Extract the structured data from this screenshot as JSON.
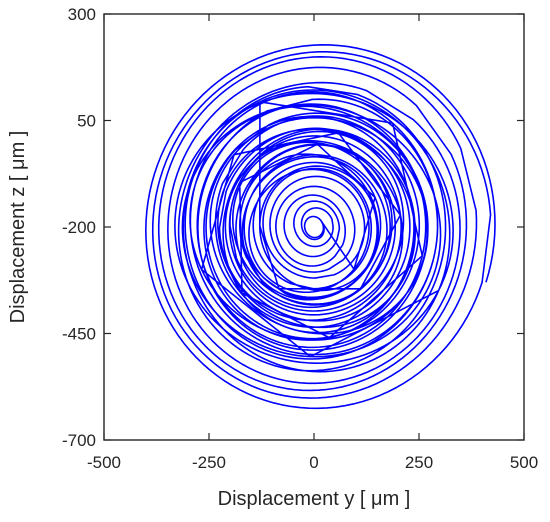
{
  "chart_data": {
    "type": "line",
    "title": "",
    "xlabel": "Displacement y   [ μm ]",
    "ylabel": "Displacement z   [ μm ]",
    "xlim": [
      -500,
      500
    ],
    "ylim": [
      -700,
      300
    ],
    "xticks": [
      -500,
      -250,
      0,
      250,
      500
    ],
    "yticks": [
      -700,
      -450,
      -200,
      50,
      300
    ],
    "grid": false,
    "legend": "none",
    "colors": {
      "line": "#0000ff",
      "axis": "#262626"
    },
    "series": [
      {
        "orbit_center": [
          0,
          -200
        ],
        "loops": [
          {
            "ry": 420,
            "rz": 435,
            "cy": 10,
            "cz": -200,
            "tilt_deg": -18
          },
          {
            "ry": 405,
            "rz": 420,
            "cy": 15,
            "cz": -205,
            "tilt_deg": -16
          },
          {
            "ry": 380,
            "rz": 400,
            "cy": 5,
            "cz": -195,
            "tilt_deg": -14
          },
          {
            "ry": 360,
            "rz": 380,
            "cy": 0,
            "cz": -200,
            "tilt_deg": -12
          },
          {
            "ry": 335,
            "rz": 350,
            "cy": 10,
            "cz": -210,
            "tilt_deg": -10
          },
          {
            "ry": 310,
            "rz": 325,
            "cy": -5,
            "cz": -195,
            "tilt_deg": -8
          },
          {
            "ry": 285,
            "rz": 300,
            "cy": 5,
            "cz": -200,
            "tilt_deg": -6
          },
          {
            "ry": 260,
            "rz": 270,
            "cy": 0,
            "cz": -205,
            "tilt_deg": -4
          },
          {
            "ry": 240,
            "rz": 250,
            "cy": 5,
            "cz": -190,
            "tilt_deg": -2
          },
          {
            "ry": 220,
            "rz": 225,
            "cy": -5,
            "cz": -200,
            "tilt_deg": 0
          },
          {
            "ry": 200,
            "rz": 205,
            "cy": 0,
            "cz": -195,
            "tilt_deg": 2
          },
          {
            "ry": 180,
            "rz": 185,
            "cy": 5,
            "cz": -200,
            "tilt_deg": 4
          },
          {
            "ry": 160,
            "rz": 165,
            "cy": -5,
            "cz": -205,
            "tilt_deg": 6
          },
          {
            "ry": 140,
            "rz": 145,
            "cy": 0,
            "cz": -200,
            "tilt_deg": 8
          },
          {
            "ry": 120,
            "rz": 125,
            "cy": 5,
            "cz": -195,
            "tilt_deg": 10
          },
          {
            "ry": 100,
            "rz": 105,
            "cy": 0,
            "cz": -200,
            "tilt_deg": 12
          },
          {
            "ry": 80,
            "rz": 85,
            "cy": -5,
            "cz": -205,
            "tilt_deg": 14
          },
          {
            "ry": 60,
            "rz": 65,
            "cy": 0,
            "cz": -200,
            "tilt_deg": 16
          },
          {
            "ry": 40,
            "rz": 45,
            "cy": 5,
            "cz": -195,
            "tilt_deg": 18
          },
          {
            "ry": 22,
            "rz": 25,
            "cy": 0,
            "cz": -200,
            "tilt_deg": 20
          }
        ]
      }
    ]
  }
}
